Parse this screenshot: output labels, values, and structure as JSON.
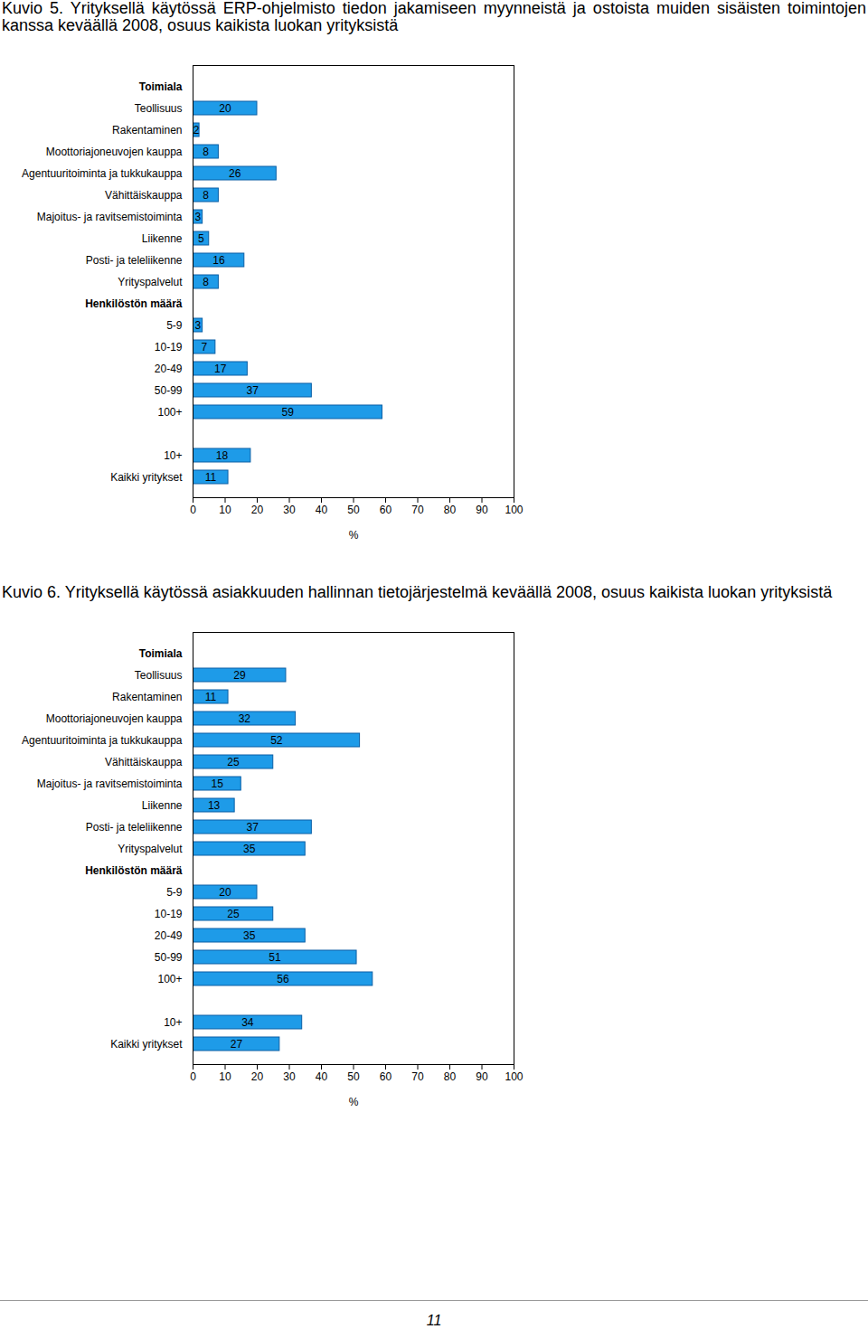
{
  "chart_data": [
    {
      "type": "bar",
      "title": "Kuvio 5. Yrityksellä käytössä ERP-ohjelmisto tiedon jakamiseen myynneistä ja ostoista muiden sisäisten toimintojen kanssa keväällä 2008, osuus kaikista luokan yrityksistä",
      "orientation": "horizontal",
      "categories": [
        "Toimiala",
        "Teollisuus",
        "Rakentaminen",
        "Moottoriajoneuvojen kauppa",
        "Agentuuritoiminta ja tukkukauppa",
        "Vähittäiskauppa",
        "Majoitus- ja ravitsemistoiminta",
        "Liikenne",
        "Posti- ja teleliikenne",
        "Yrityspalvelut",
        "Henkilöstön määrä",
        "5-9",
        "10-19",
        "20-49",
        "50-99",
        "100+",
        null,
        "10+",
        "Kaikki yritykset"
      ],
      "values": [
        null,
        20,
        2,
        8,
        26,
        8,
        3,
        5,
        16,
        8,
        null,
        3,
        7,
        17,
        37,
        59,
        null,
        18,
        11
      ],
      "color": "#1e9be8",
      "xlabel": "%",
      "xlim": [
        0,
        100
      ],
      "xticks": [
        0,
        10,
        20,
        30,
        40,
        50,
        60,
        70,
        80,
        90,
        100
      ],
      "data_labels": true,
      "grid": false
    },
    {
      "type": "bar",
      "title": "Kuvio 6. Yrityksellä käytössä asiakkuuden hallinnan tietojärjestelmä keväällä 2008, osuus kaikista luokan yrityksistä",
      "orientation": "horizontal",
      "categories": [
        "Toimiala",
        "Teollisuus",
        "Rakentaminen",
        "Moottoriajoneuvojen kauppa",
        "Agentuuritoiminta ja tukkukauppa",
        "Vähittäiskauppa",
        "Majoitus- ja ravitsemistoiminta",
        "Liikenne",
        "Posti- ja teleliikenne",
        "Yrityspalvelut",
        "Henkilöstön määrä",
        "5-9",
        "10-19",
        "20-49",
        "50-99",
        "100+",
        null,
        "10+",
        "Kaikki yritykset"
      ],
      "values": [
        null,
        29,
        11,
        32,
        52,
        25,
        15,
        13,
        37,
        35,
        null,
        20,
        25,
        35,
        51,
        56,
        null,
        34,
        27
      ],
      "color": "#1e9be8",
      "xlabel": "%",
      "xlim": [
        0,
        100
      ],
      "xticks": [
        0,
        10,
        20,
        30,
        40,
        50,
        60,
        70,
        80,
        90,
        100
      ],
      "data_labels": true,
      "grid": false
    }
  ],
  "page_number": "11"
}
